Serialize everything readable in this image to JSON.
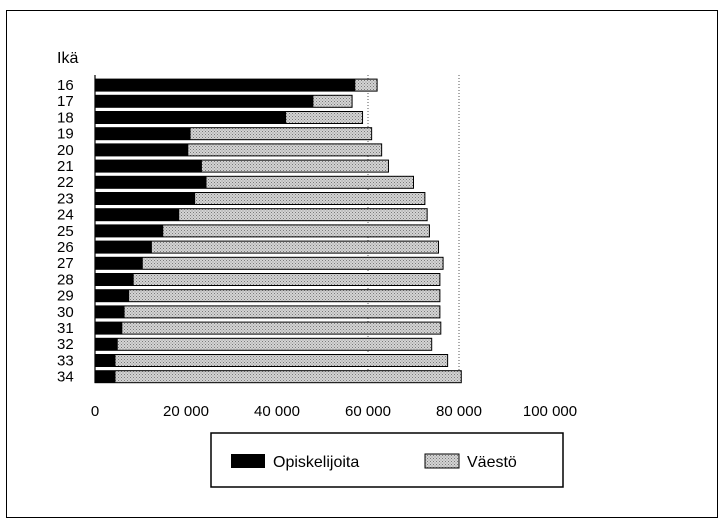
{
  "chart_data": {
    "type": "bar",
    "orientation": "horizontal",
    "stacked": false,
    "overlap": true,
    "y_axis_title": "Ikä",
    "categories": [
      "16",
      "17",
      "18",
      "19",
      "20",
      "21",
      "22",
      "23",
      "24",
      "25",
      "26",
      "27",
      "28",
      "29",
      "30",
      "31",
      "32",
      "33",
      "34"
    ],
    "series": [
      {
        "name": "Väestö",
        "color": "#b8b8b8",
        "pattern": "dotted",
        "values": [
          62000,
          56500,
          58800,
          60800,
          63000,
          64500,
          70000,
          72500,
          73000,
          73500,
          75500,
          76500,
          75800,
          75800,
          75800,
          76000,
          74000,
          77500,
          80500
        ]
      },
      {
        "name": "Opiskelijoita",
        "color": "#000000",
        "values": [
          57200,
          48000,
          42000,
          21000,
          20500,
          23500,
          24500,
          22000,
          18500,
          15000,
          12500,
          10500,
          8500,
          7500,
          6500,
          6000,
          5000,
          4500,
          4500
        ]
      }
    ],
    "x_ticks": [
      "0",
      "20 000",
      "40 000",
      "60 000",
      "80 000",
      "100 000"
    ],
    "xlim": [
      0,
      100000
    ],
    "reference_lines": [
      60000,
      80000
    ],
    "legend": {
      "placement": "bottom",
      "items": [
        "Opiskelijoita",
        "Väestö"
      ]
    }
  }
}
